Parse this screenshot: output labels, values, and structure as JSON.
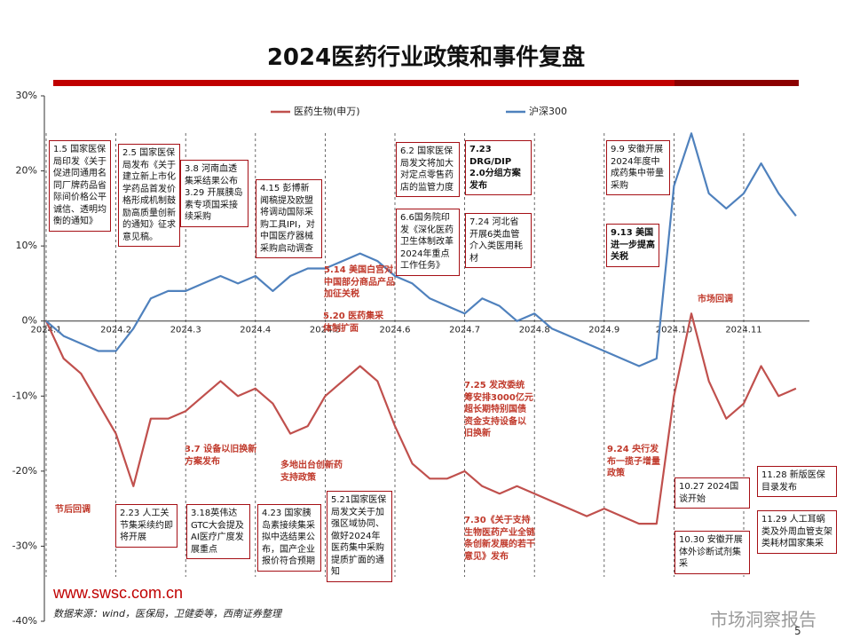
{
  "chart_data": {
    "type": "line",
    "title": "2024医药行业政策和事件复盘",
    "categories": [
      "2024.1",
      null,
      null,
      null,
      "2024.2",
      null,
      null,
      null,
      "2024.3",
      null,
      null,
      null,
      "2024.4",
      null,
      null,
      null,
      "2024.5",
      null,
      null,
      null,
      "2024.6",
      null,
      null,
      null,
      "2024.7",
      null,
      null,
      null,
      "2024.8",
      null,
      null,
      null,
      "2024.9",
      null,
      null,
      null,
      "2024.10",
      null,
      null,
      null,
      "2024.11",
      null,
      null,
      null
    ],
    "series": [
      {
        "name": "医药生物(申万)",
        "color": "#c0504d",
        "values": [
          0,
          -5,
          -7,
          -11,
          -15,
          -22,
          -13,
          -13,
          -12,
          -10,
          -8,
          -10,
          -9,
          -11,
          -15,
          -14,
          -10,
          -8,
          -6,
          -8,
          -14,
          -19,
          -21,
          -21,
          -20,
          -22,
          -23,
          -22,
          -23,
          -24,
          -25,
          -26,
          -25,
          -26,
          -27,
          -27,
          -10,
          1,
          -8,
          -13,
          -11,
          -6,
          -10,
          -9
        ]
      },
      {
        "name": "沪深300",
        "color": "#4f81bd",
        "values": [
          0,
          -2,
          -3,
          -4,
          -4,
          -1,
          3,
          4,
          4,
          5,
          6,
          5,
          6,
          4,
          6,
          7,
          7,
          8,
          9,
          8,
          6,
          5,
          3,
          2,
          1,
          3,
          2,
          0,
          1,
          -1,
          -2,
          -3,
          -4,
          -5,
          -6,
          -5,
          18,
          25,
          17,
          15,
          17,
          21,
          17,
          14
        ]
      }
    ],
    "ylim": [
      -40,
      30
    ],
    "yticks": [
      {
        "value": 30,
        "label": "30%"
      },
      {
        "value": 20,
        "label": "20%"
      },
      {
        "value": 10,
        "label": "10%"
      },
      {
        "value": 0,
        "label": "0%"
      },
      {
        "value": -10,
        "label": "-10%"
      },
      {
        "value": -20,
        "label": "-20%"
      },
      {
        "value": -30,
        "label": "-30%"
      },
      {
        "value": -40,
        "label": "-40%"
      }
    ],
    "annotations": [
      {
        "text": "1.5 国家医保局印发《关于促进同通用名同厂牌药品省际间价格公平诚信、透明均衡的通知》",
        "style": "box"
      },
      {
        "text": "2.5 国家医保局发布《关于建立新上市化学药品首发价格形成机制鼓励高质量创新的通知》征求意见稿。",
        "style": "box"
      },
      {
        "text": "3.8 河南血透集采结果公布 3.29 开展胰岛素专项国采接续采购",
        "style": "box"
      },
      {
        "text": "4.15 彭博新闻稿提及欧盟将调动国际采购工具IPI，对中国医疗器械采购启动调查",
        "style": "box"
      },
      {
        "text": "6.2 国家医保局发文将加大对定点零售药店的监管力度",
        "style": "box"
      },
      {
        "text": "6.6国务院印发《深化医药卫生体制改革2024年重点工作任务》",
        "style": "box"
      },
      {
        "text": "7.23 DRG/DIP 2.0分组方案发布",
        "style": "box-bold"
      },
      {
        "text": "7.24 河北省开展6类血管介入类医用耗材",
        "style": "box"
      },
      {
        "text": "9.9 安徽开展2024年度中成药集中带量采购",
        "style": "box"
      },
      {
        "text": "9.13 美国进一步提高关税",
        "style": "box-bold"
      },
      {
        "text": "2.23 人工关节集采续约即将开展",
        "style": "box"
      },
      {
        "text": "3.18英伟达GTC大会提及AI医疗广度发展重点",
        "style": "box"
      },
      {
        "text": "4.23 国家胰岛素接续集采拟中选结果公布，国产企业报价符合预期",
        "style": "box"
      },
      {
        "text": "5.21国家医保局发文关于加强区域协同、做好2024年医药集中采购提质扩面的通知",
        "style": "box"
      },
      {
        "text": "10.27 2024国谈开始",
        "style": "box"
      },
      {
        "text": "10.30 安徽开展体外诊断试剂集采",
        "style": "box"
      },
      {
        "text": "11.28 新版医保目录发布",
        "style": "box"
      },
      {
        "text": "11.29 人工耳蜗类及外周血管支架类耗材国家集采",
        "style": "box"
      },
      {
        "text": "节后回调",
        "style": "red"
      },
      {
        "text": "3.7 设备以旧换新方案发布",
        "style": "red"
      },
      {
        "text": "多地出台创新药支持政策",
        "style": "red"
      },
      {
        "text": "5.14 美国白宫对中国部分商品产品加征关税",
        "style": "red"
      },
      {
        "text": "5.20 医药集采体制扩面",
        "style": "red"
      },
      {
        "text": "7.25 发改委统筹安排3000亿元超长期特别国债资金支持设备以旧换新",
        "style": "red"
      },
      {
        "text": "7.30《关于支持生物医药产业全链条创新发展的若干意见》发布",
        "style": "red"
      },
      {
        "text": "9.24 央行发布一揽子增量政策",
        "style": "red"
      },
      {
        "text": "市场回调",
        "style": "red"
      }
    ],
    "website": "www.swsc.com.cn",
    "source": "数据来源：wind，医保局，卫健委等，西南证券整理",
    "page_number": "5",
    "watermark": "市场洞察报告"
  }
}
